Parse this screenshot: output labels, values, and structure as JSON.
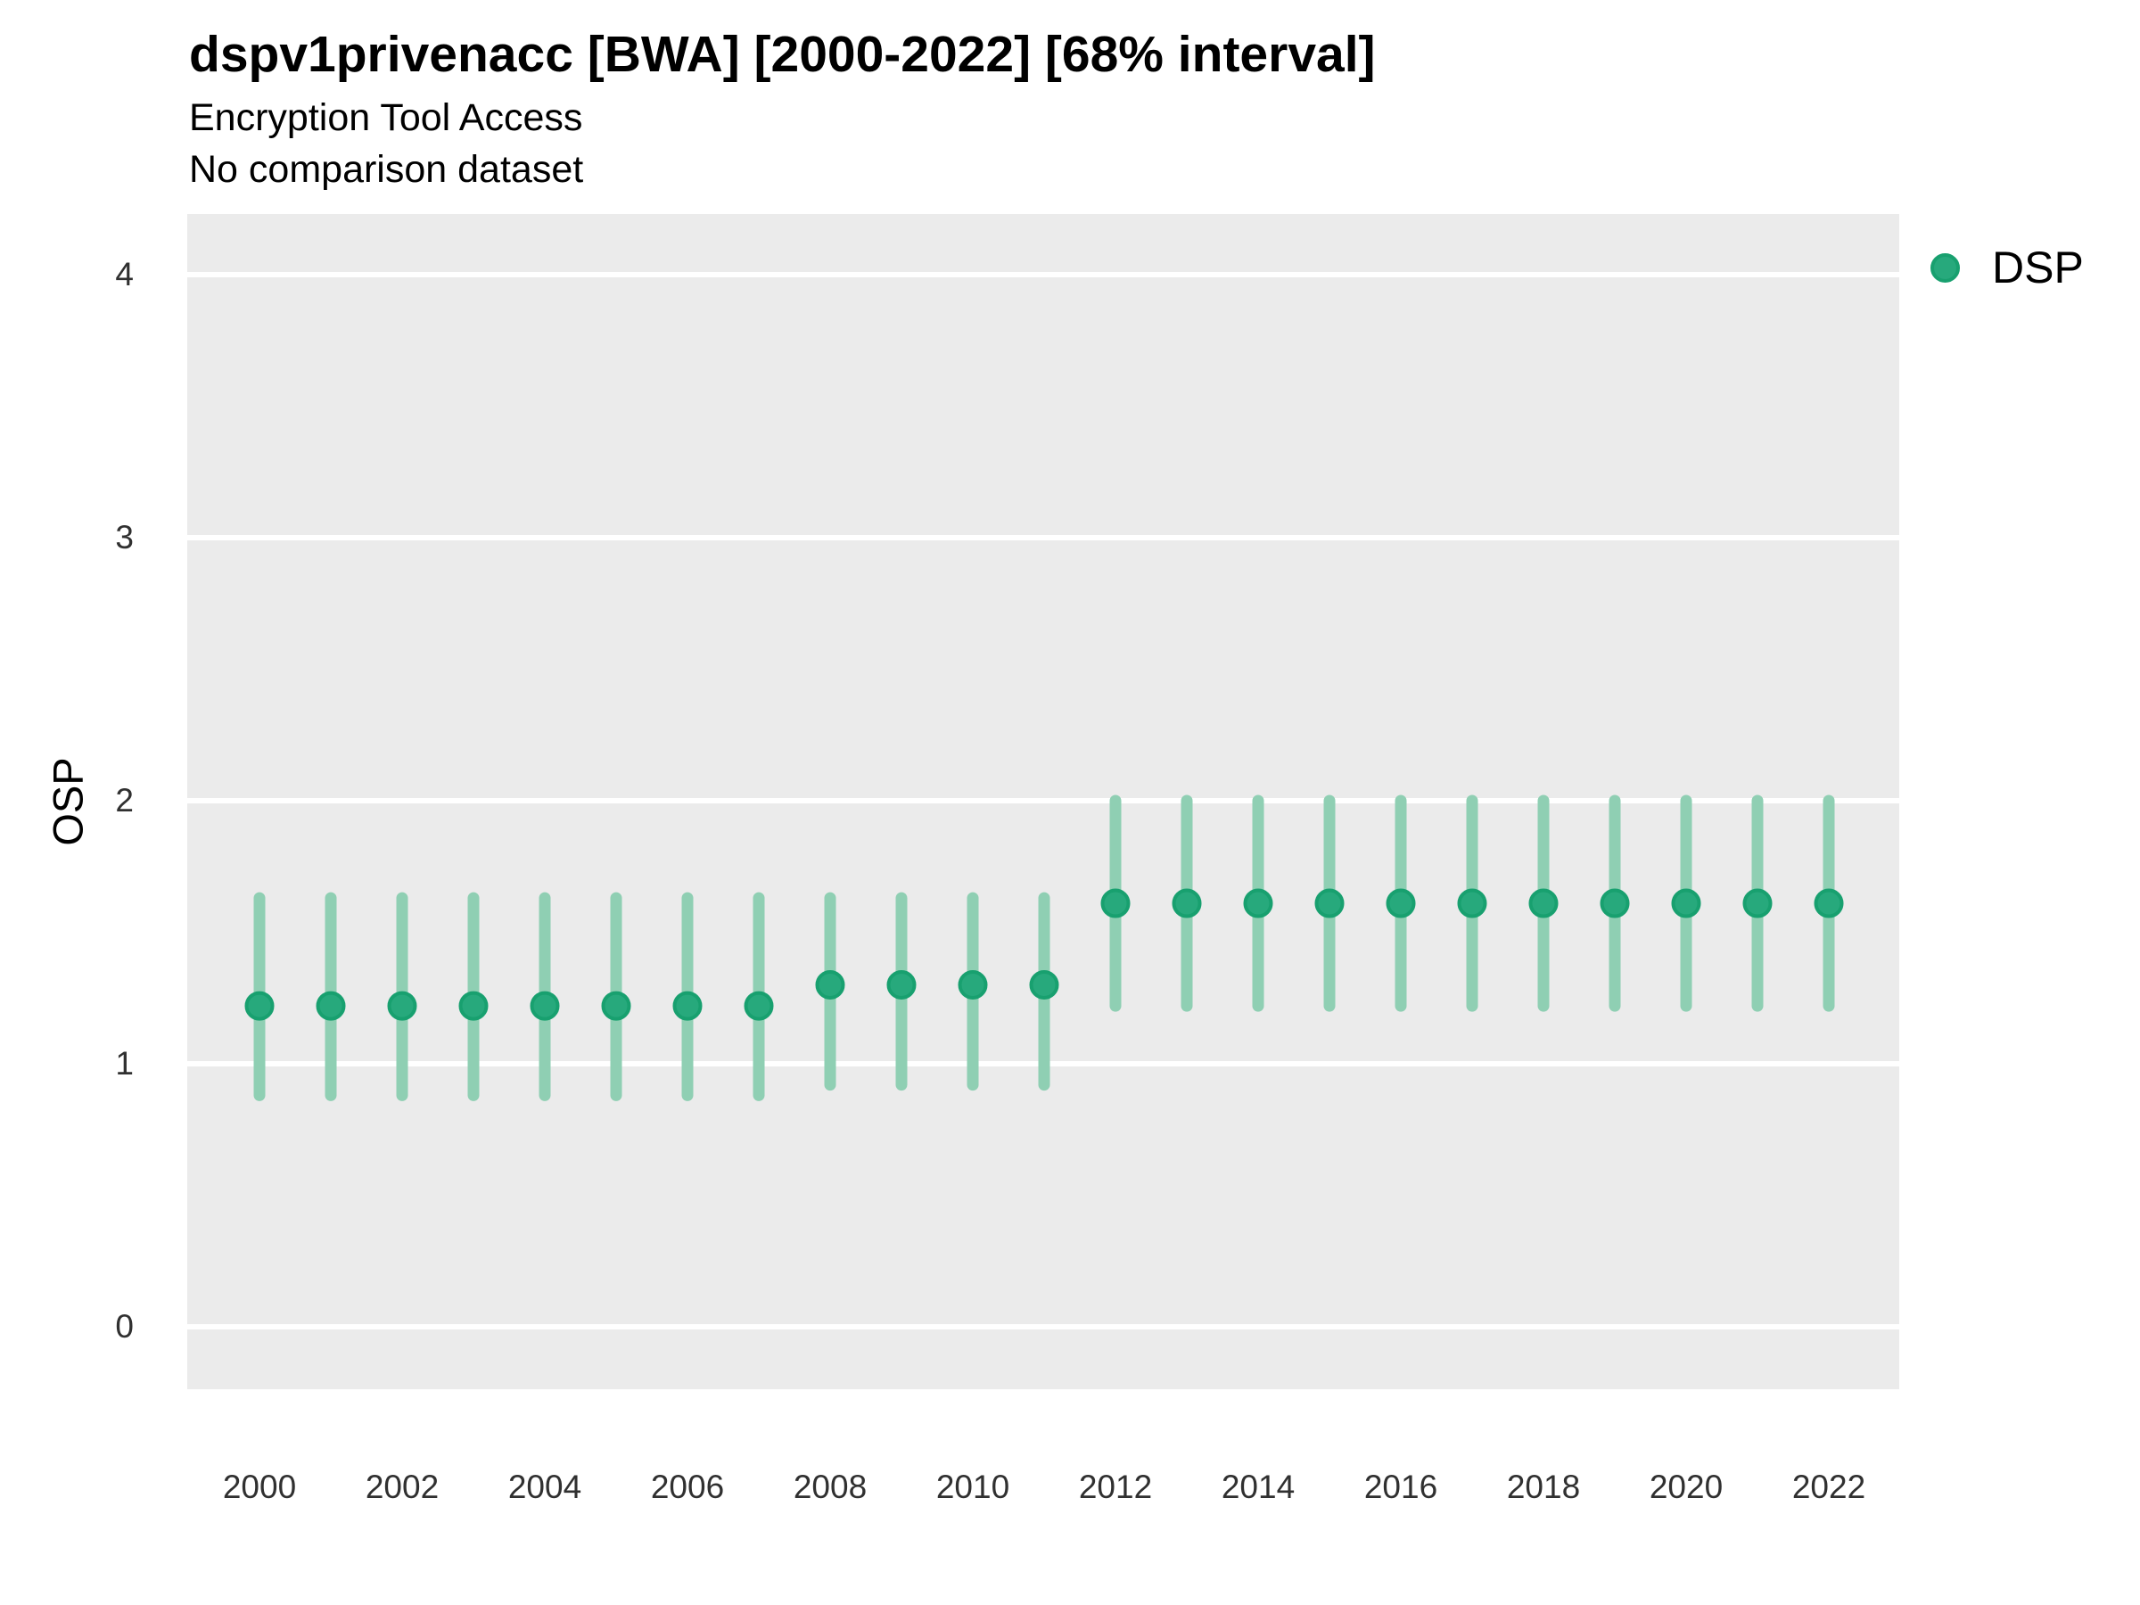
{
  "header": {
    "title": "dspv1privenacc [BWA] [2000-2022] [68% interval]",
    "subtitle1": "Encryption Tool Access",
    "subtitle2": "No comparison dataset"
  },
  "legend": {
    "position": "top-right",
    "items": [
      {
        "label": "DSP",
        "marker": "circle-icon"
      }
    ]
  },
  "colors": {
    "panel_bg": "#EBEBEB",
    "gridline": "#FFFFFF",
    "point_fill": "#27A97C",
    "point_ring": "#18A06F",
    "interval_line": "#8FCFB3",
    "text": "#000000",
    "tick_text": "#303030"
  },
  "chart_data": {
    "type": "pointrange",
    "title": "dspv1privenacc [BWA] [2000-2022] [68% interval]",
    "subtitle": "Encryption Tool Access",
    "note": "No comparison dataset",
    "interval_level": "68%",
    "xlabel": "",
    "ylabel": "OSP",
    "ylim": [
      -0.2,
      4.2
    ],
    "yticks": [
      0,
      1,
      2,
      3,
      4
    ],
    "xticks": [
      2000,
      2002,
      2004,
      2006,
      2008,
      2010,
      2012,
      2014,
      2016,
      2018,
      2020,
      2022
    ],
    "grid": "horizontal-major-only",
    "legend_position": "right-top",
    "series": [
      {
        "name": "DSP",
        "x": [
          2000,
          2001,
          2002,
          2003,
          2004,
          2005,
          2006,
          2007,
          2008,
          2009,
          2010,
          2011,
          2012,
          2013,
          2014,
          2015,
          2016,
          2017,
          2018,
          2019,
          2020,
          2021,
          2022
        ],
        "y": [
          1.22,
          1.22,
          1.22,
          1.22,
          1.22,
          1.22,
          1.22,
          1.22,
          1.3,
          1.3,
          1.3,
          1.3,
          1.61,
          1.61,
          1.61,
          1.61,
          1.61,
          1.61,
          1.61,
          1.61,
          1.61,
          1.61,
          1.61
        ],
        "y_lo": [
          0.88,
          0.88,
          0.88,
          0.88,
          0.88,
          0.88,
          0.88,
          0.88,
          0.92,
          0.92,
          0.92,
          0.92,
          1.22,
          1.22,
          1.22,
          1.22,
          1.22,
          1.22,
          1.22,
          1.22,
          1.22,
          1.22,
          1.22
        ],
        "y_hi": [
          1.63,
          1.63,
          1.63,
          1.63,
          1.63,
          1.63,
          1.63,
          1.63,
          1.63,
          1.63,
          1.63,
          1.63,
          2.0,
          2.0,
          2.0,
          2.0,
          2.0,
          2.0,
          2.0,
          2.0,
          2.0,
          2.0,
          2.0
        ]
      }
    ]
  }
}
